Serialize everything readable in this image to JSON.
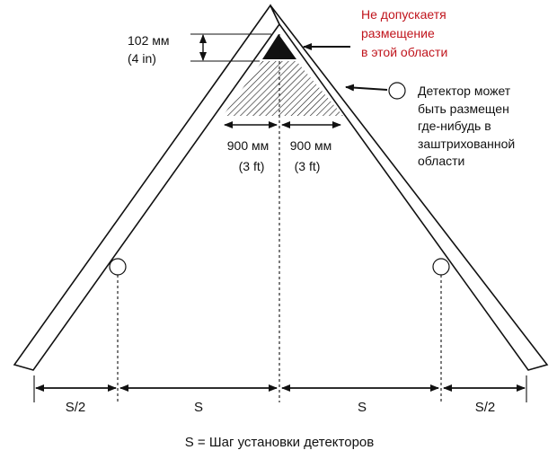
{
  "colors": {
    "stroke": "#111111",
    "warning_text": "#c0141c",
    "body_text": "#111111",
    "background": "#ffffff"
  },
  "labels": {
    "top_gap_metric": "102 мм",
    "top_gap_imperial": "(4 in)",
    "no_placement_line1": "Не допускаетя",
    "no_placement_line2": "размещение",
    "no_placement_line3": "в этой области",
    "allowed_line1": "Детектор может",
    "allowed_line2": "быть размещен",
    "allowed_line3": "где-нибудь в",
    "allowed_line4": "заштрихованной",
    "allowed_line5": "области",
    "left_zone_metric": "900 мм",
    "left_zone_imperial": "(3 ft)",
    "right_zone_metric": "900 мм",
    "right_zone_imperial": "(3 ft)",
    "half_spacing_left": "S/2",
    "spacing_left": "S",
    "spacing_right": "S",
    "half_spacing_right": "S/2",
    "legend": "S = Шаг установки детекторов"
  },
  "icons": {
    "detector": "circle-detector-icon",
    "pointer": "left-arrow-icon"
  }
}
